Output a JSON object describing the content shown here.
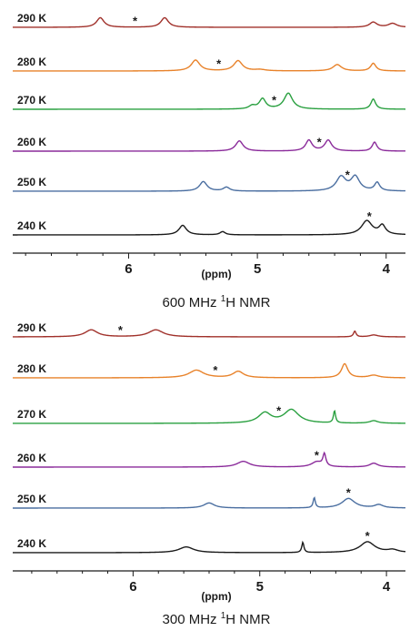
{
  "chart_data": [
    {
      "type": "line",
      "title_parts": [
        "600 MHz ",
        "1",
        "H NMR"
      ],
      "xlabel": "(ppm)",
      "xlim": [
        6.9,
        3.85
      ],
      "ticks": [
        "6",
        "5",
        "4"
      ],
      "tick_values": [
        6,
        5,
        4
      ],
      "series": [
        {
          "name": "290 K",
          "color": "#a0302a",
          "star": 5.95,
          "peaks": [
            [
              6.22,
              0.75,
              0.035
            ],
            [
              5.72,
              0.75,
              0.035
            ],
            [
              4.1,
              0.4,
              0.035
            ],
            [
              3.95,
              0.3,
              0.04
            ]
          ]
        },
        {
          "name": "280 K",
          "color": "#e8822a",
          "star": 5.3,
          "peaks": [
            [
              5.48,
              0.85,
              0.04
            ],
            [
              5.15,
              0.8,
              0.04
            ],
            [
              4.98,
              0.1,
              0.05
            ],
            [
              4.38,
              0.5,
              0.04
            ],
            [
              4.1,
              0.6,
              0.025
            ]
          ]
        },
        {
          "name": "270 K",
          "color": "#2aa040",
          "star": 4.87,
          "peaks": [
            [
              5.04,
              0.25,
              0.03
            ],
            [
              4.96,
              0.8,
              0.03
            ],
            [
              4.76,
              1.25,
              0.04
            ],
            [
              4.1,
              0.8,
              0.022
            ]
          ]
        },
        {
          "name": "260 K",
          "color": "#8a2a9a",
          "star": 4.52,
          "peaks": [
            [
              5.14,
              0.8,
              0.035
            ],
            [
              4.6,
              0.85,
              0.03
            ],
            [
              4.45,
              0.85,
              0.032
            ],
            [
              4.09,
              0.7,
              0.022
            ]
          ]
        },
        {
          "name": "250 K",
          "color": "#4a6ea0",
          "star": 4.3,
          "peaks": [
            [
              5.42,
              0.75,
              0.035
            ],
            [
              5.24,
              0.3,
              0.03
            ],
            [
              4.35,
              1.1,
              0.045
            ],
            [
              4.24,
              1.1,
              0.04
            ],
            [
              4.07,
              0.65,
              0.024
            ]
          ]
        },
        {
          "name": "240 K",
          "color": "#1a1a1a",
          "star": 4.13,
          "peaks": [
            [
              5.58,
              0.75,
              0.035
            ],
            [
              5.27,
              0.25,
              0.025
            ],
            [
              4.15,
              1.1,
              0.05
            ],
            [
              4.03,
              0.7,
              0.03
            ]
          ]
        }
      ]
    },
    {
      "type": "line",
      "title_parts": [
        "300 MHz ",
        "1",
        "H NMR"
      ],
      "xlabel": "(ppm)",
      "xlim": [
        6.95,
        3.85
      ],
      "ticks": [
        "6",
        "5",
        "4"
      ],
      "tick_values": [
        6,
        5,
        4
      ],
      "series": [
        {
          "name": "290 K",
          "color": "#a0302a",
          "star": 6.1,
          "peaks": [
            [
              6.33,
              0.55,
              0.06
            ],
            [
              5.82,
              0.55,
              0.07
            ],
            [
              4.25,
              0.45,
              0.012
            ],
            [
              4.1,
              0.15,
              0.04
            ]
          ]
        },
        {
          "name": "280 K",
          "color": "#e8822a",
          "star": 5.35,
          "peaks": [
            [
              5.5,
              0.6,
              0.07
            ],
            [
              5.17,
              0.5,
              0.05
            ],
            [
              4.33,
              1.1,
              0.03
            ],
            [
              4.1,
              0.2,
              0.05
            ]
          ]
        },
        {
          "name": "270 K",
          "color": "#2aa040",
          "star": 4.85,
          "peaks": [
            [
              4.96,
              0.8,
              0.06
            ],
            [
              4.75,
              1.05,
              0.07
            ],
            [
              4.41,
              0.95,
              0.01
            ],
            [
              4.1,
              0.2,
              0.04
            ]
          ]
        },
        {
          "name": "260 K",
          "color": "#8a2a9a",
          "star": 4.55,
          "peaks": [
            [
              5.13,
              0.45,
              0.06
            ],
            [
              4.55,
              0.4,
              0.05
            ],
            [
              4.49,
              0.95,
              0.014
            ],
            [
              4.1,
              0.3,
              0.04
            ]
          ]
        },
        {
          "name": "250 K",
          "color": "#4a6ea0",
          "star": 4.3,
          "peaks": [
            [
              5.4,
              0.4,
              0.05
            ],
            [
              4.57,
              0.8,
              0.01
            ],
            [
              4.3,
              0.75,
              0.06
            ],
            [
              4.06,
              0.25,
              0.04
            ]
          ]
        },
        {
          "name": "240 K",
          "color": "#1a1a1a",
          "star": 4.15,
          "peaks": [
            [
              5.58,
              0.45,
              0.07
            ],
            [
              4.66,
              0.8,
              0.01
            ],
            [
              4.15,
              0.85,
              0.07
            ],
            [
              3.95,
              0.2,
              0.05
            ]
          ]
        }
      ]
    }
  ]
}
